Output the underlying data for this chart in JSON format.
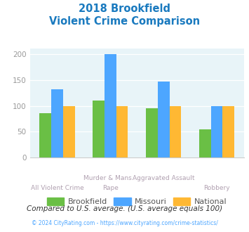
{
  "title_line1": "2018 Brookfield",
  "title_line2": "Violent Crime Comparison",
  "cat_labels_top": [
    "",
    "Murder & Mans...",
    "Aggravated Assault",
    ""
  ],
  "cat_labels_bot": [
    "All Violent Crime",
    "Rape",
    "",
    "Robbery"
  ],
  "brookfield": [
    86,
    110,
    95,
    55
  ],
  "missouri": [
    132,
    200,
    147,
    99
  ],
  "national": [
    100,
    100,
    100,
    100
  ],
  "brookfield_color": "#6abf45",
  "missouri_color": "#4da6ff",
  "national_color": "#ffb833",
  "ylim": [
    0,
    210
  ],
  "yticks": [
    0,
    50,
    100,
    150,
    200
  ],
  "background_color": "#e8f4f8",
  "title_color": "#1a7abf",
  "xlabel_top_color": "#b0a0b0",
  "xlabel_bot_color": "#b0a0b0",
  "ytick_color": "#999999",
  "footer_note": "Compared to U.S. average. (U.S. average equals 100)",
  "footer_note_color": "#333333",
  "copyright_text": "© 2024 CityRating.com - https://www.cityrating.com/crime-statistics/",
  "copyright_color": "#4da6ff",
  "legend_labels": [
    "Brookfield",
    "Missouri",
    "National"
  ],
  "legend_text_color": "#555555"
}
